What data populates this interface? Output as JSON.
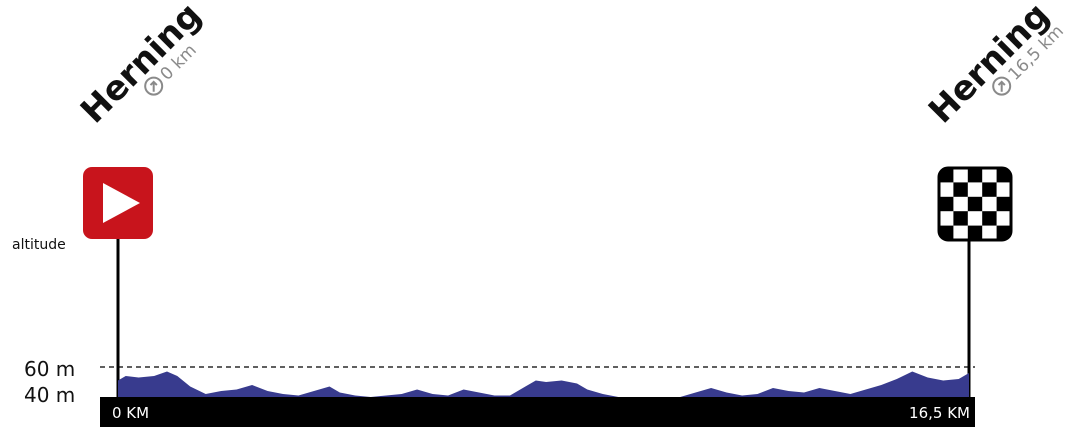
{
  "chart_data": {
    "type": "area",
    "xlabel": "",
    "ylabel": "altitude",
    "x_unit": "KM",
    "xlim": [
      0,
      16.5
    ],
    "ylim": [
      0,
      80
    ],
    "y_ticks": [
      {
        "value": 40,
        "label": "40 m"
      },
      {
        "value": 60,
        "label": "60 m",
        "dashed": true
      }
    ],
    "x_tick_labels": [
      {
        "value": 0,
        "label": "0 KM"
      },
      {
        "value": 16.5,
        "label": "16,5 KM"
      }
    ],
    "colors": {
      "profile": "#383b8e",
      "axis_bar": "#000000",
      "start_flag": "#c8141c"
    },
    "series": [
      {
        "x": [
          0,
          0.15,
          0.4,
          0.7,
          0.95,
          1.15,
          1.4,
          1.7,
          2.0,
          2.3,
          2.6,
          2.9,
          3.2,
          3.5,
          3.8,
          4.1,
          4.3,
          4.6,
          4.9,
          5.2,
          5.5,
          5.8,
          6.1,
          6.4,
          6.7,
          7.0,
          7.3,
          7.6,
          7.9,
          8.1,
          8.3,
          8.6,
          8.9,
          9.1,
          9.4,
          9.7,
          10.0,
          10.3,
          10.6,
          10.9,
          11.2,
          11.5,
          11.8,
          12.1,
          12.4,
          12.7,
          13.0,
          13.3,
          13.6,
          13.9,
          14.2,
          14.5,
          14.8,
          15.1,
          15.4,
          15.7,
          16.0,
          16.3,
          16.5
        ],
        "y": [
          51,
          54,
          53,
          54,
          57,
          54,
          47,
          42,
          44,
          45,
          48,
          44,
          42,
          41,
          44,
          47,
          43,
          41,
          40,
          41,
          42,
          45,
          42,
          41,
          45,
          43,
          41,
          41,
          47,
          51,
          50,
          51,
          49,
          45,
          42,
          38,
          38,
          38,
          39,
          40,
          43,
          46,
          43,
          41,
          42,
          46,
          44,
          43,
          46,
          44,
          42,
          45,
          48,
          52,
          57,
          53,
          51,
          52,
          56
        ]
      }
    ]
  },
  "start": {
    "city": "Herning",
    "distance": "0 km",
    "flag_icon": "start-play-flag-icon"
  },
  "finish": {
    "city": "Herning",
    "distance": "16,5 km",
    "flag_icon": "checkered-flag-icon"
  }
}
